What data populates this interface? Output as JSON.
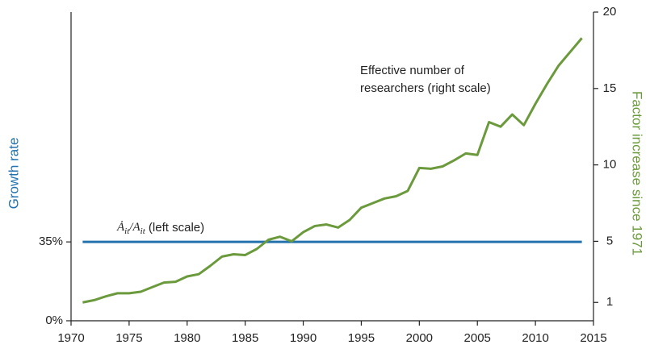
{
  "chart_data": {
    "type": "line",
    "y_label": "Growth rate",
    "y2_label": "Factor increase since 1971",
    "xlim": [
      1970,
      2015
    ],
    "xticks": [
      1970,
      1975,
      1980,
      1985,
      1990,
      1995,
      2000,
      2005,
      2010,
      2015
    ],
    "ylim": [
      0,
      137
    ],
    "yticks": [
      {
        "value": 0,
        "label": "0%"
      },
      {
        "value": 35,
        "label": "35%"
      }
    ],
    "y2lim": [
      -0.2,
      20
    ],
    "y2ticks": [
      1,
      5,
      10,
      15,
      20
    ],
    "series": [
      {
        "name_parts": [
          "Ȧ",
          "it",
          "/A",
          "it",
          " (left scale)"
        ],
        "color": "#2372ad",
        "x": [
          1971,
          2014
        ],
        "values": [
          35,
          35
        ]
      },
      {
        "name_lines": [
          "Effective number of",
          "researchers (right scale)"
        ],
        "color": "#6b9a3c",
        "axis": "y2",
        "x": [
          1971,
          1972,
          1973,
          1974,
          1975,
          1976,
          1977,
          1978,
          1979,
          1980,
          1981,
          1982,
          1983,
          1984,
          1985,
          1986,
          1987,
          1988,
          1989,
          1990,
          1991,
          1992,
          1993,
          1994,
          1995,
          1996,
          1997,
          1998,
          1999,
          2000,
          2001,
          2002,
          2003,
          2004,
          2005,
          2006,
          2007,
          2008,
          2009,
          2010,
          2011,
          2012,
          2013,
          2014
        ],
        "values": [
          1.0,
          1.15,
          1.4,
          1.6,
          1.6,
          1.7,
          2.0,
          2.3,
          2.35,
          2.7,
          2.85,
          3.4,
          4.0,
          4.15,
          4.1,
          4.5,
          5.1,
          5.3,
          5.0,
          5.6,
          6.0,
          6.1,
          5.9,
          6.4,
          7.2,
          7.5,
          7.8,
          7.95,
          8.3,
          9.8,
          9.75,
          9.9,
          10.3,
          10.75,
          10.65,
          12.8,
          12.5,
          13.3,
          12.6,
          14.0,
          15.3,
          16.5,
          17.4,
          18.3
        ]
      }
    ]
  }
}
